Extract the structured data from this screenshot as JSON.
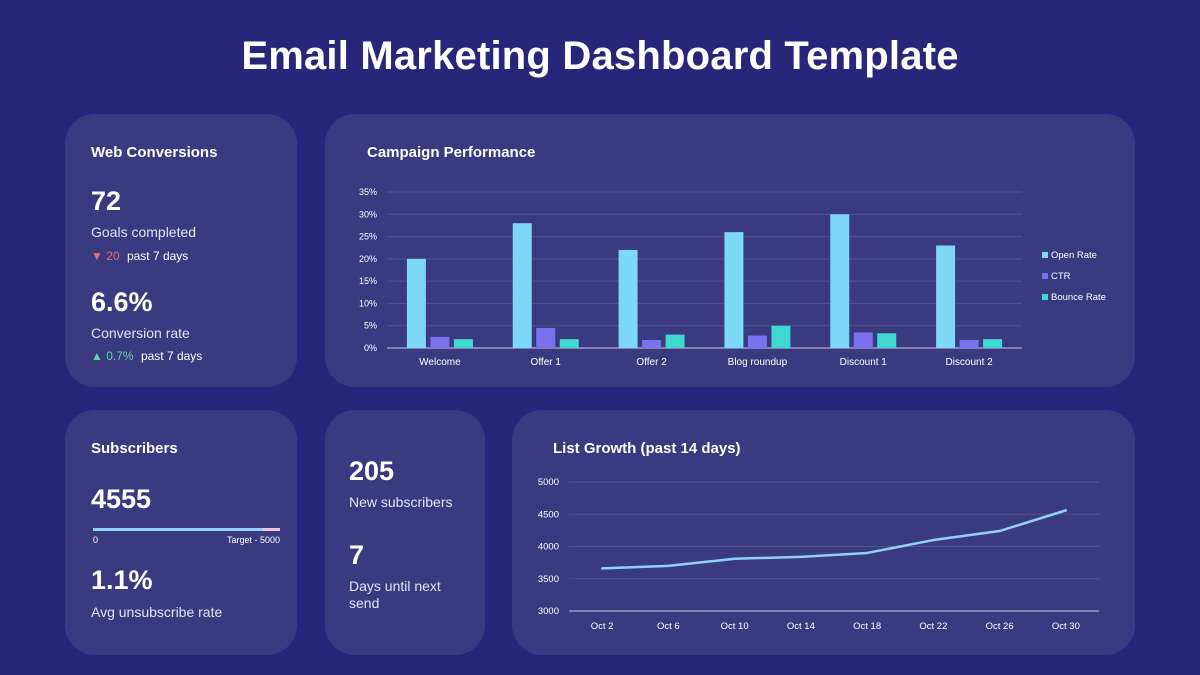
{
  "page_title": "Email Marketing Dashboard Template",
  "colors": {
    "background": "#27267a",
    "card": "#393a80",
    "open_rate": "#7dd8f7",
    "ctr": "#7b71ef",
    "bounce_rate": "#3fd9d0",
    "line": "#8ed2f8",
    "progress_fill": "#8ed2f8",
    "progress_rest": "#f2c6d9",
    "down": "#f06b6b",
    "up": "#5fd7a2"
  },
  "web_conversions": {
    "title": "Web Conversions",
    "goals_value": "72",
    "goals_label": "Goals completed",
    "goals_delta_icon": "▼",
    "goals_delta": "20",
    "goals_period": "past 7 days",
    "rate_value": "6.6%",
    "rate_label": "Conversion rate",
    "rate_delta_icon": "▲",
    "rate_delta": "0.7%",
    "rate_period": "past 7 days"
  },
  "subscribers": {
    "title": "Subscribers",
    "count": "4555",
    "progress_value": 4555,
    "progress_target": 5000,
    "progress_start_label": "0",
    "progress_target_label": "Target - 5000",
    "unsub_value": "1.1%",
    "unsub_label": "Avg unsubscribe rate"
  },
  "new_subs": {
    "count": "205",
    "count_label": "New subscribers",
    "days": "7",
    "days_label": "Days until next send"
  },
  "chart_data": [
    {
      "type": "bar",
      "title": "Campaign Performance",
      "categories": [
        "Welcome",
        "Offer 1",
        "Offer 2",
        "Blog roundup",
        "Discount 1",
        "Discount 2"
      ],
      "series": [
        {
          "name": "Open Rate",
          "values": [
            20,
            28,
            22,
            26,
            30,
            23
          ]
        },
        {
          "name": "CTR",
          "values": [
            2.5,
            4.5,
            1.8,
            2.8,
            3.5,
            1.8
          ]
        },
        {
          "name": "Bounce Rate",
          "values": [
            2,
            2,
            3,
            5,
            3.3,
            2
          ]
        }
      ],
      "yticks": [
        "0%",
        "5%",
        "10%",
        "15%",
        "20%",
        "25%",
        "30%",
        "35%"
      ],
      "ylim": [
        0,
        35
      ],
      "grid": true,
      "legend": "right"
    },
    {
      "type": "line",
      "title": "List Growth (past 14 days)",
      "x": [
        "Oct 2",
        "Oct 6",
        "Oct 10",
        "Oct 14",
        "Oct 18",
        "Oct 22",
        "Oct 26",
        "Oct 30"
      ],
      "values": [
        3660,
        3700,
        3810,
        3840,
        3900,
        4100,
        4240,
        4560
      ],
      "yticks": [
        "3000",
        "3500",
        "4000",
        "4500",
        "5000"
      ],
      "ylim": [
        3000,
        5000
      ],
      "grid": true
    }
  ]
}
